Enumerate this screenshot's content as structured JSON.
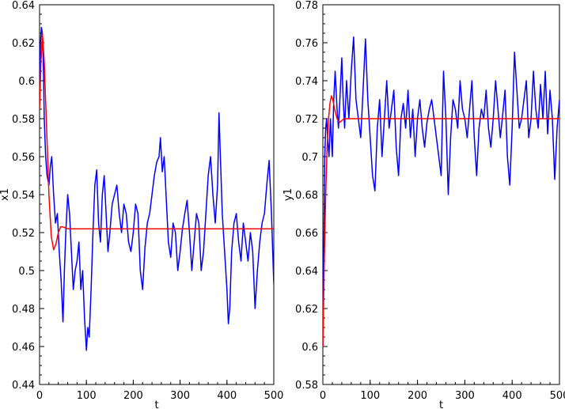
{
  "chart_data": [
    {
      "type": "line",
      "xlabel": "t",
      "ylabel": "x1",
      "xlim": [
        0,
        500
      ],
      "ylim": [
        0.44,
        0.64
      ],
      "xticks": [
        0,
        100,
        200,
        300,
        400,
        500
      ],
      "yticks": [
        0.44,
        0.46,
        0.48,
        0.5,
        0.52,
        0.54,
        0.56,
        0.58,
        0.6,
        0.62,
        0.64
      ],
      "xtick_labels": [
        "0",
        "100",
        "200",
        "300",
        "400",
        "500"
      ],
      "ytick_labels": [
        "0.44",
        "0.46",
        "0.48",
        "0.5",
        "0.52",
        "0.54",
        "0.56",
        "0.58",
        "0.6",
        "0.62",
        "0.64"
      ],
      "grid": false,
      "series": [
        {
          "color": "#ff0000",
          "x": [
            0,
            3,
            6,
            10,
            15,
            20,
            25,
            30,
            35,
            40,
            45,
            50,
            60,
            80,
            100,
            150,
            200,
            300,
            400,
            500
          ],
          "y": [
            0.585,
            0.61,
            0.625,
            0.61,
            0.575,
            0.54,
            0.518,
            0.511,
            0.514,
            0.52,
            0.523,
            0.523,
            0.522,
            0.522,
            0.522,
            0.522,
            0.522,
            0.522,
            0.522,
            0.522
          ]
        },
        {
          "color": "#0000ff",
          "x": [
            0,
            2,
            4,
            6,
            8,
            10,
            13,
            16,
            20,
            23,
            26,
            30,
            34,
            38,
            42,
            46,
            50,
            53,
            56,
            60,
            64,
            68,
            72,
            76,
            80,
            84,
            88,
            92,
            96,
            100,
            103,
            106,
            110,
            114,
            118,
            122,
            126,
            130,
            134,
            138,
            142,
            146,
            150,
            155,
            160,
            165,
            170,
            175,
            180,
            185,
            190,
            195,
            200,
            205,
            210,
            215,
            220,
            225,
            230,
            235,
            240,
            245,
            250,
            255,
            258,
            262,
            266,
            270,
            275,
            280,
            285,
            290,
            295,
            300,
            305,
            310,
            315,
            320,
            325,
            330,
            335,
            340,
            345,
            350,
            355,
            360,
            365,
            370,
            375,
            380,
            383,
            386,
            390,
            395,
            400,
            403,
            406,
            410,
            415,
            420,
            425,
            430,
            435,
            440,
            445,
            450,
            455,
            460,
            465,
            470,
            475,
            480,
            485,
            490,
            495,
            500
          ],
          "y": [
            0.6,
            0.62,
            0.628,
            0.625,
            0.61,
            0.58,
            0.56,
            0.55,
            0.545,
            0.555,
            0.56,
            0.54,
            0.525,
            0.53,
            0.51,
            0.495,
            0.473,
            0.5,
            0.52,
            0.54,
            0.53,
            0.51,
            0.49,
            0.5,
            0.505,
            0.515,
            0.49,
            0.5,
            0.475,
            0.458,
            0.47,
            0.465,
            0.49,
            0.52,
            0.545,
            0.553,
            0.525,
            0.515,
            0.54,
            0.55,
            0.53,
            0.51,
            0.52,
            0.535,
            0.54,
            0.545,
            0.53,
            0.52,
            0.535,
            0.53,
            0.515,
            0.51,
            0.52,
            0.535,
            0.53,
            0.5,
            0.49,
            0.512,
            0.525,
            0.53,
            0.54,
            0.55,
            0.557,
            0.56,
            0.57,
            0.552,
            0.56,
            0.54,
            0.515,
            0.507,
            0.525,
            0.52,
            0.5,
            0.51,
            0.522,
            0.53,
            0.537,
            0.52,
            0.5,
            0.515,
            0.53,
            0.525,
            0.5,
            0.51,
            0.53,
            0.55,
            0.56,
            0.54,
            0.525,
            0.545,
            0.583,
            0.56,
            0.53,
            0.51,
            0.49,
            0.472,
            0.48,
            0.51,
            0.525,
            0.53,
            0.515,
            0.505,
            0.525,
            0.515,
            0.505,
            0.52,
            0.51,
            0.48,
            0.5,
            0.515,
            0.525,
            0.53,
            0.545,
            0.558,
            0.53,
            0.493
          ]
        }
      ]
    },
    {
      "type": "line",
      "xlabel": "t",
      "ylabel": "y1",
      "xlim": [
        0,
        500
      ],
      "ylim": [
        0.58,
        0.78
      ],
      "xticks": [
        0,
        100,
        200,
        300,
        400,
        500
      ],
      "yticks": [
        0.58,
        0.6,
        0.62,
        0.64,
        0.66,
        0.68,
        0.7,
        0.72,
        0.74,
        0.76,
        0.78
      ],
      "xtick_labels": [
        "0",
        "100",
        "200",
        "300",
        "400",
        "500"
      ],
      "ytick_labels": [
        "0.58",
        "0.6",
        "0.62",
        "0.64",
        "0.66",
        "0.68",
        "0.7",
        "0.72",
        "0.74",
        "0.76",
        "0.78"
      ],
      "grid": false,
      "series": [
        {
          "color": "#ff0000",
          "x": [
            0,
            3,
            6,
            9,
            12,
            15,
            18,
            21,
            25,
            30,
            35,
            40,
            45,
            50,
            60,
            80,
            100,
            200,
            300,
            400,
            500
          ],
          "y": [
            0.6,
            0.645,
            0.68,
            0.705,
            0.72,
            0.728,
            0.732,
            0.73,
            0.725,
            0.72,
            0.718,
            0.719,
            0.72,
            0.72,
            0.72,
            0.72,
            0.72,
            0.72,
            0.72,
            0.72,
            0.72
          ]
        },
        {
          "color": "#0000ff",
          "x": [
            0,
            2,
            4,
            6,
            8,
            10,
            13,
            16,
            20,
            23,
            26,
            30,
            33,
            36,
            40,
            43,
            46,
            50,
            55,
            60,
            65,
            70,
            75,
            80,
            85,
            90,
            95,
            100,
            105,
            110,
            115,
            120,
            125,
            130,
            135,
            140,
            145,
            150,
            155,
            160,
            165,
            170,
            175,
            180,
            185,
            190,
            195,
            200,
            205,
            210,
            215,
            220,
            225,
            230,
            235,
            240,
            245,
            250,
            255,
            260,
            265,
            270,
            275,
            280,
            285,
            290,
            295,
            300,
            305,
            310,
            315,
            320,
            325,
            330,
            335,
            340,
            345,
            350,
            355,
            360,
            365,
            370,
            375,
            380,
            385,
            390,
            395,
            400,
            405,
            410,
            415,
            420,
            425,
            430,
            435,
            440,
            445,
            450,
            455,
            460,
            465,
            470,
            475,
            480,
            485,
            490,
            495,
            500
          ],
          "y": [
            0.6,
            0.65,
            0.7,
            0.715,
            0.72,
            0.71,
            0.7,
            0.72,
            0.7,
            0.73,
            0.745,
            0.725,
            0.715,
            0.73,
            0.752,
            0.73,
            0.715,
            0.74,
            0.72,
            0.745,
            0.763,
            0.73,
            0.72,
            0.71,
            0.735,
            0.762,
            0.73,
            0.71,
            0.69,
            0.682,
            0.715,
            0.73,
            0.7,
            0.72,
            0.74,
            0.715,
            0.725,
            0.735,
            0.705,
            0.69,
            0.72,
            0.728,
            0.715,
            0.735,
            0.71,
            0.725,
            0.7,
            0.72,
            0.73,
            0.715,
            0.705,
            0.718,
            0.725,
            0.73,
            0.72,
            0.71,
            0.7,
            0.69,
            0.745,
            0.72,
            0.68,
            0.71,
            0.73,
            0.725,
            0.715,
            0.74,
            0.725,
            0.72,
            0.71,
            0.725,
            0.74,
            0.71,
            0.69,
            0.715,
            0.725,
            0.72,
            0.735,
            0.715,
            0.705,
            0.72,
            0.74,
            0.725,
            0.71,
            0.722,
            0.735,
            0.7,
            0.685,
            0.715,
            0.755,
            0.735,
            0.715,
            0.72,
            0.73,
            0.74,
            0.71,
            0.72,
            0.745,
            0.725,
            0.715,
            0.738,
            0.72,
            0.745,
            0.712,
            0.735,
            0.72,
            0.688,
            0.715,
            0.73
          ]
        }
      ]
    }
  ]
}
